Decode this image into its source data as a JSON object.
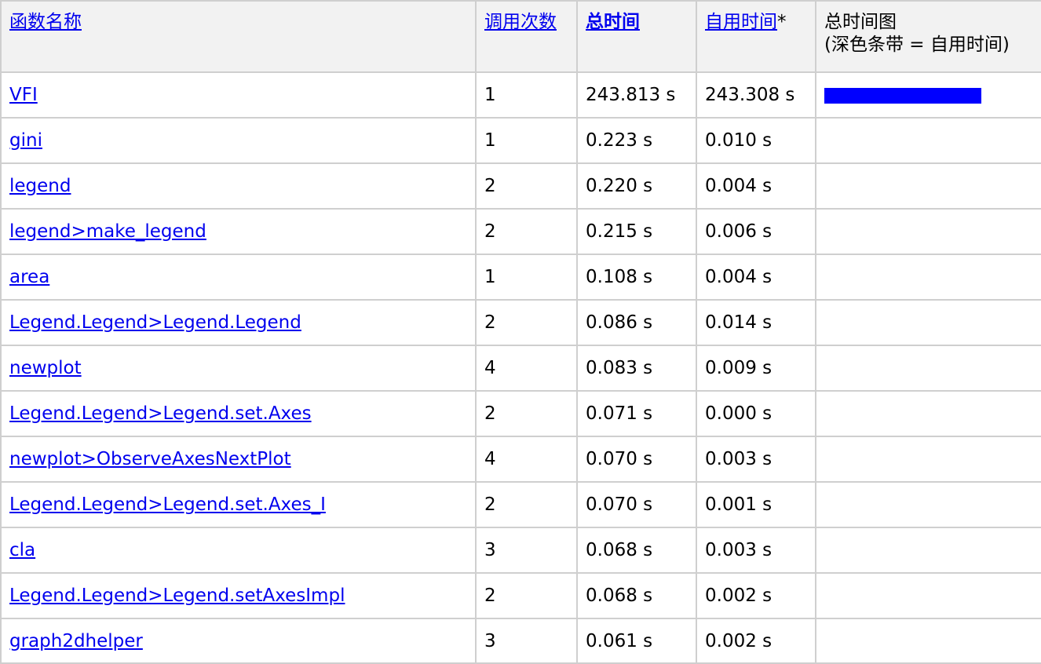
{
  "headers": {
    "function_name": "函数名称",
    "calls": "调用次数",
    "total_time": "总时间",
    "self_time": "自用时间",
    "self_time_star": "*",
    "chart_title": "总时间图",
    "chart_legend": "(深色条带 = 自用时间)"
  },
  "colors": {
    "link": "#0000ee",
    "bar": "#0000ff",
    "header_bg": "#f2f2f2",
    "grid": "#cfcfcf"
  },
  "rows": [
    {
      "name": "VFI",
      "calls": "1",
      "total": "243.813 s",
      "self": "243.308 s",
      "bar_fraction": 1.0
    },
    {
      "name": "gini",
      "calls": "1",
      "total": "0.223 s",
      "self": "0.010 s",
      "bar_fraction": 0
    },
    {
      "name": "legend",
      "calls": "2",
      "total": "0.220 s",
      "self": "0.004 s",
      "bar_fraction": 0
    },
    {
      "name": "legend>make_legend",
      "calls": "2",
      "total": "0.215 s",
      "self": "0.006 s",
      "bar_fraction": 0
    },
    {
      "name": "area",
      "calls": "1",
      "total": "0.108 s",
      "self": "0.004 s",
      "bar_fraction": 0
    },
    {
      "name": "Legend.Legend>Legend.Legend",
      "calls": "2",
      "total": "0.086 s",
      "self": "0.014 s",
      "bar_fraction": 0
    },
    {
      "name": "newplot",
      "calls": "4",
      "total": "0.083 s",
      "self": "0.009 s",
      "bar_fraction": 0
    },
    {
      "name": "Legend.Legend>Legend.set.Axes",
      "calls": "2",
      "total": "0.071 s",
      "self": "0.000 s",
      "bar_fraction": 0
    },
    {
      "name": "newplot>ObserveAxesNextPlot",
      "calls": "4",
      "total": "0.070 s",
      "self": "0.003 s",
      "bar_fraction": 0
    },
    {
      "name": "Legend.Legend>Legend.set.Axes_I",
      "calls": "2",
      "total": "0.070 s",
      "self": "0.001 s",
      "bar_fraction": 0
    },
    {
      "name": "cla",
      "calls": "3",
      "total": "0.068 s",
      "self": "0.003 s",
      "bar_fraction": 0
    },
    {
      "name": "Legend.Legend>Legend.setAxesImpl",
      "calls": "2",
      "total": "0.068 s",
      "self": "0.002 s",
      "bar_fraction": 0
    },
    {
      "name": "graph2dhelper",
      "calls": "3",
      "total": "0.061 s",
      "self": "0.002 s",
      "bar_fraction": 0
    }
  ]
}
